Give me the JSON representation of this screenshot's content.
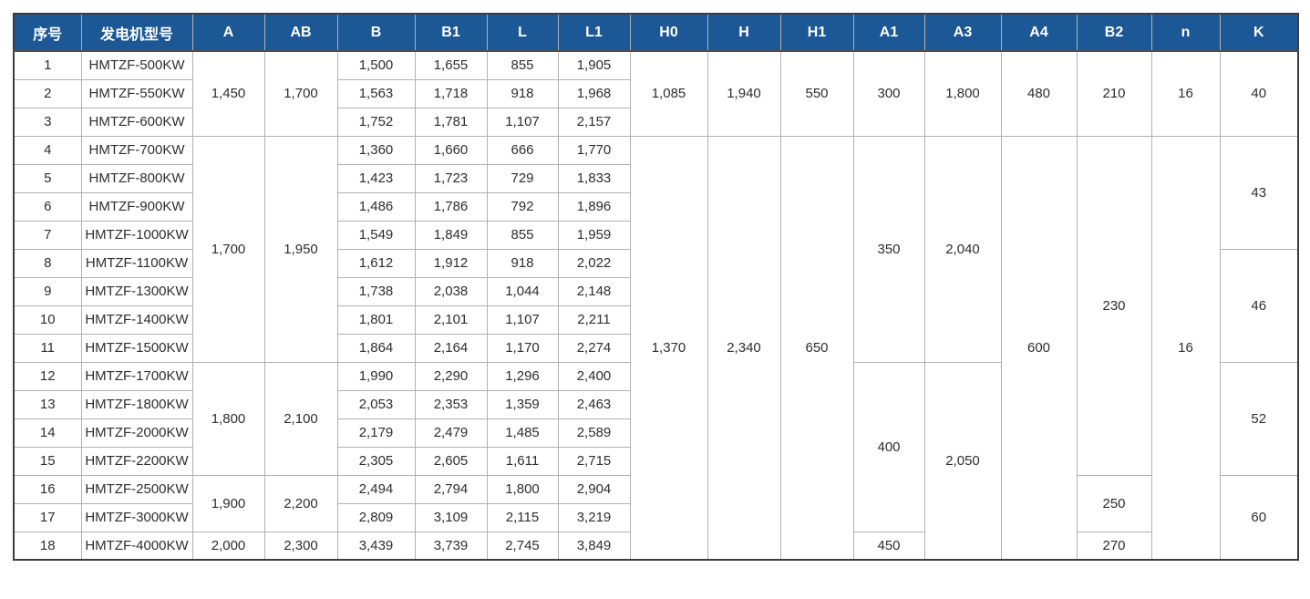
{
  "colors": {
    "header_bg": "#1C5796",
    "header_text": "#FFFFFF",
    "grid_line": "#B1B1B1",
    "outer_border": "#3C3C3C",
    "body_text": "#2E2E2E",
    "row_bg": "#FFFFFF"
  },
  "table": {
    "columns": [
      "序号",
      "发电机型号",
      "A",
      "AB",
      "B",
      "B1",
      "L",
      "L1",
      "H0",
      "H",
      "H1",
      "A1",
      "A3",
      "A4",
      "B2",
      "n",
      "K"
    ],
    "rows": [
      [
        {
          "v": "1"
        },
        {
          "v": "HMTZF-500KW"
        },
        {
          "v": "1,450",
          "rs": 3
        },
        {
          "v": "1,700",
          "rs": 3
        },
        {
          "v": "1,500"
        },
        {
          "v": "1,655"
        },
        {
          "v": "855"
        },
        {
          "v": "1,905"
        },
        {
          "v": "1,085",
          "rs": 3
        },
        {
          "v": "1,940",
          "rs": 3
        },
        {
          "v": "550",
          "rs": 3
        },
        {
          "v": "300",
          "rs": 3
        },
        {
          "v": "1,800",
          "rs": 3
        },
        {
          "v": "480",
          "rs": 3
        },
        {
          "v": "210",
          "rs": 3
        },
        {
          "v": "16",
          "rs": 3
        },
        {
          "v": "40",
          "rs": 3
        }
      ],
      [
        {
          "v": "2"
        },
        {
          "v": "HMTZF-550KW"
        },
        {
          "v": "1,563"
        },
        {
          "v": "1,718"
        },
        {
          "v": "918"
        },
        {
          "v": "1,968"
        }
      ],
      [
        {
          "v": "3"
        },
        {
          "v": "HMTZF-600KW"
        },
        {
          "v": "1,752"
        },
        {
          "v": "1,781"
        },
        {
          "v": "1,107"
        },
        {
          "v": "2,157"
        }
      ],
      [
        {
          "v": "4"
        },
        {
          "v": "HMTZF-700KW"
        },
        {
          "v": "1,700",
          "rs": 8
        },
        {
          "v": "1,950",
          "rs": 8
        },
        {
          "v": "1,360"
        },
        {
          "v": "1,660"
        },
        {
          "v": "666"
        },
        {
          "v": "1,770"
        },
        {
          "v": "1,370",
          "rs": 15
        },
        {
          "v": "2,340",
          "rs": 15
        },
        {
          "v": "650",
          "rs": 15
        },
        {
          "v": "350",
          "rs": 8
        },
        {
          "v": "2,040",
          "rs": 8
        },
        {
          "v": "600",
          "rs": 15
        },
        {
          "v": "230",
          "rs": 12
        },
        {
          "v": "16",
          "rs": 15
        },
        {
          "v": "43",
          "rs": 4
        }
      ],
      [
        {
          "v": "5"
        },
        {
          "v": "HMTZF-800KW"
        },
        {
          "v": "1,423"
        },
        {
          "v": "1,723"
        },
        {
          "v": "729"
        },
        {
          "v": "1,833"
        }
      ],
      [
        {
          "v": "6"
        },
        {
          "v": "HMTZF-900KW"
        },
        {
          "v": "1,486"
        },
        {
          "v": "1,786"
        },
        {
          "v": "792"
        },
        {
          "v": "1,896"
        }
      ],
      [
        {
          "v": "7"
        },
        {
          "v": "HMTZF-1000KW"
        },
        {
          "v": "1,549"
        },
        {
          "v": "1,849"
        },
        {
          "v": "855"
        },
        {
          "v": "1,959"
        }
      ],
      [
        {
          "v": "8"
        },
        {
          "v": "HMTZF-1100KW"
        },
        {
          "v": "1,612"
        },
        {
          "v": "1,912"
        },
        {
          "v": "918"
        },
        {
          "v": "2,022"
        },
        {
          "v": "46",
          "rs": 4
        }
      ],
      [
        {
          "v": "9"
        },
        {
          "v": "HMTZF-1300KW"
        },
        {
          "v": "1,738"
        },
        {
          "v": "2,038"
        },
        {
          "v": "1,044"
        },
        {
          "v": "2,148"
        }
      ],
      [
        {
          "v": "10"
        },
        {
          "v": "HMTZF-1400KW"
        },
        {
          "v": "1,801"
        },
        {
          "v": "2,101"
        },
        {
          "v": "1,107"
        },
        {
          "v": "2,211"
        }
      ],
      [
        {
          "v": "11"
        },
        {
          "v": "HMTZF-1500KW"
        },
        {
          "v": "1,864"
        },
        {
          "v": "2,164"
        },
        {
          "v": "1,170"
        },
        {
          "v": "2,274"
        }
      ],
      [
        {
          "v": "12"
        },
        {
          "v": "HMTZF-1700KW"
        },
        {
          "v": "1,800",
          "rs": 4
        },
        {
          "v": "2,100",
          "rs": 4
        },
        {
          "v": "1,990"
        },
        {
          "v": "2,290"
        },
        {
          "v": "1,296"
        },
        {
          "v": "2,400"
        },
        {
          "v": "400",
          "rs": 6
        },
        {
          "v": "2,050",
          "rs": 7
        },
        {
          "v": "52",
          "rs": 4
        }
      ],
      [
        {
          "v": "13"
        },
        {
          "v": "HMTZF-1800KW"
        },
        {
          "v": "2,053"
        },
        {
          "v": "2,353"
        },
        {
          "v": "1,359"
        },
        {
          "v": "2,463"
        }
      ],
      [
        {
          "v": "14"
        },
        {
          "v": "HMTZF-2000KW"
        },
        {
          "v": "2,179"
        },
        {
          "v": "2,479"
        },
        {
          "v": "1,485"
        },
        {
          "v": "2,589"
        }
      ],
      [
        {
          "v": "15"
        },
        {
          "v": "HMTZF-2200KW"
        },
        {
          "v": "2,305"
        },
        {
          "v": "2,605"
        },
        {
          "v": "1,611"
        },
        {
          "v": "2,715"
        }
      ],
      [
        {
          "v": "16"
        },
        {
          "v": "HMTZF-2500KW"
        },
        {
          "v": "1,900",
          "rs": 2
        },
        {
          "v": "2,200",
          "rs": 2
        },
        {
          "v": "2,494"
        },
        {
          "v": "2,794"
        },
        {
          "v": "1,800"
        },
        {
          "v": "2,904"
        },
        {
          "v": "250",
          "rs": 2
        },
        {
          "v": "60",
          "rs": 3
        }
      ],
      [
        {
          "v": "17"
        },
        {
          "v": "HMTZF-3000KW"
        },
        {
          "v": "2,809"
        },
        {
          "v": "3,109"
        },
        {
          "v": "2,115"
        },
        {
          "v": "3,219"
        }
      ],
      [
        {
          "v": "18"
        },
        {
          "v": "HMTZF-4000KW"
        },
        {
          "v": "2,000"
        },
        {
          "v": "2,300"
        },
        {
          "v": "3,439"
        },
        {
          "v": "3,739"
        },
        {
          "v": "2,745"
        },
        {
          "v": "3,849"
        },
        {
          "v": "450"
        },
        {
          "v": "270"
        }
      ]
    ]
  }
}
